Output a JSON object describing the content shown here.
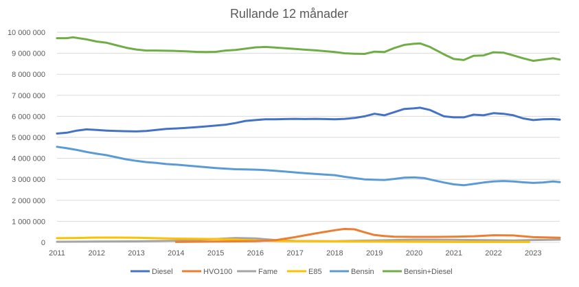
{
  "chart_data": {
    "type": "line",
    "title": "Rullande 12 månader",
    "xlabel": "",
    "ylabel": "",
    "xlim": [
      2011,
      2023.67
    ],
    "ylim": [
      0,
      10000000
    ],
    "grid": "horizontal",
    "legend_position": "bottom",
    "x_ticks": [
      {
        "value": 2011,
        "label": "2011"
      },
      {
        "value": 2012,
        "label": "2012"
      },
      {
        "value": 2013,
        "label": "2013"
      },
      {
        "value": 2014,
        "label": "2014"
      },
      {
        "value": 2015,
        "label": "2015"
      },
      {
        "value": 2016,
        "label": "2016"
      },
      {
        "value": 2017,
        "label": "2017"
      },
      {
        "value": 2018,
        "label": "2018"
      },
      {
        "value": 2019,
        "label": "2019"
      },
      {
        "value": 2020,
        "label": "2020"
      },
      {
        "value": 2021,
        "label": "2021"
      },
      {
        "value": 2022,
        "label": "2022"
      },
      {
        "value": 2023,
        "label": "2023"
      }
    ],
    "y_ticks": [
      {
        "value": 0,
        "label": "0"
      },
      {
        "value": 1000000,
        "label": "1 000 000"
      },
      {
        "value": 2000000,
        "label": "2 000 000"
      },
      {
        "value": 3000000,
        "label": "3 000 000"
      },
      {
        "value": 4000000,
        "label": "4 000 000"
      },
      {
        "value": 5000000,
        "label": "5 000 000"
      },
      {
        "value": 6000000,
        "label": "6 000 000"
      },
      {
        "value": 7000000,
        "label": "7 000 000"
      },
      {
        "value": 8000000,
        "label": "8 000 000"
      },
      {
        "value": 9000000,
        "label": "9 000 000"
      },
      {
        "value": 10000000,
        "label": "10 000 000"
      }
    ],
    "series": [
      {
        "name": "Diesel",
        "color": "#4472c4",
        "points": [
          [
            2011.0,
            5180000
          ],
          [
            2011.25,
            5220000
          ],
          [
            2011.5,
            5320000
          ],
          [
            2011.75,
            5380000
          ],
          [
            2012.0,
            5350000
          ],
          [
            2012.25,
            5320000
          ],
          [
            2012.5,
            5300000
          ],
          [
            2012.75,
            5290000
          ],
          [
            2013.0,
            5280000
          ],
          [
            2013.25,
            5300000
          ],
          [
            2013.5,
            5350000
          ],
          [
            2013.75,
            5400000
          ],
          [
            2014.0,
            5420000
          ],
          [
            2014.25,
            5450000
          ],
          [
            2014.5,
            5480000
          ],
          [
            2014.75,
            5520000
          ],
          [
            2015.0,
            5560000
          ],
          [
            2015.25,
            5600000
          ],
          [
            2015.5,
            5680000
          ],
          [
            2015.75,
            5780000
          ],
          [
            2016.0,
            5820000
          ],
          [
            2016.25,
            5860000
          ],
          [
            2016.5,
            5860000
          ],
          [
            2016.75,
            5870000
          ],
          [
            2017.0,
            5880000
          ],
          [
            2017.25,
            5870000
          ],
          [
            2017.5,
            5880000
          ],
          [
            2017.75,
            5870000
          ],
          [
            2018.0,
            5860000
          ],
          [
            2018.25,
            5880000
          ],
          [
            2018.5,
            5920000
          ],
          [
            2018.75,
            6000000
          ],
          [
            2019.0,
            6120000
          ],
          [
            2019.25,
            6050000
          ],
          [
            2019.5,
            6200000
          ],
          [
            2019.75,
            6350000
          ],
          [
            2020.0,
            6380000
          ],
          [
            2020.15,
            6410000
          ],
          [
            2020.4,
            6300000
          ],
          [
            2020.75,
            6000000
          ],
          [
            2021.0,
            5950000
          ],
          [
            2021.25,
            5950000
          ],
          [
            2021.5,
            6080000
          ],
          [
            2021.75,
            6050000
          ],
          [
            2022.0,
            6150000
          ],
          [
            2022.25,
            6120000
          ],
          [
            2022.5,
            6050000
          ],
          [
            2022.75,
            5900000
          ],
          [
            2023.0,
            5820000
          ],
          [
            2023.25,
            5860000
          ],
          [
            2023.5,
            5870000
          ],
          [
            2023.67,
            5840000
          ]
        ]
      },
      {
        "name": "HVO100",
        "color": "#ed7d31",
        "points": [
          [
            2014.0,
            20000
          ],
          [
            2015.0,
            40000
          ],
          [
            2016.0,
            60000
          ],
          [
            2016.5,
            100000
          ],
          [
            2017.0,
            250000
          ],
          [
            2017.5,
            420000
          ],
          [
            2018.0,
            580000
          ],
          [
            2018.25,
            640000
          ],
          [
            2018.5,
            620000
          ],
          [
            2018.75,
            480000
          ],
          [
            2019.0,
            350000
          ],
          [
            2019.25,
            300000
          ],
          [
            2019.5,
            270000
          ],
          [
            2020.0,
            260000
          ],
          [
            2020.5,
            260000
          ],
          [
            2021.0,
            270000
          ],
          [
            2021.5,
            290000
          ],
          [
            2022.0,
            340000
          ],
          [
            2022.5,
            330000
          ],
          [
            2023.0,
            250000
          ],
          [
            2023.67,
            220000
          ]
        ]
      },
      {
        "name": "Fame",
        "color": "#a5a5a5",
        "points": [
          [
            2011.0,
            30000
          ],
          [
            2012.0,
            40000
          ],
          [
            2013.0,
            50000
          ],
          [
            2014.0,
            80000
          ],
          [
            2014.5,
            120000
          ],
          [
            2015.0,
            160000
          ],
          [
            2015.5,
            210000
          ],
          [
            2016.0,
            190000
          ],
          [
            2016.5,
            110000
          ],
          [
            2017.0,
            70000
          ],
          [
            2018.0,
            60000
          ],
          [
            2019.0,
            90000
          ],
          [
            2020.0,
            130000
          ],
          [
            2021.0,
            120000
          ],
          [
            2022.0,
            100000
          ],
          [
            2022.5,
            90000
          ],
          [
            2023.0,
            110000
          ],
          [
            2023.67,
            130000
          ]
        ]
      },
      {
        "name": "E85",
        "color": "#ffc000",
        "points": [
          [
            2011.0,
            200000
          ],
          [
            2011.5,
            210000
          ],
          [
            2012.0,
            230000
          ],
          [
            2012.5,
            230000
          ],
          [
            2013.0,
            220000
          ],
          [
            2013.5,
            200000
          ],
          [
            2014.0,
            180000
          ],
          [
            2014.5,
            170000
          ],
          [
            2015.0,
            160000
          ],
          [
            2015.5,
            130000
          ],
          [
            2016.0,
            90000
          ],
          [
            2016.5,
            70000
          ],
          [
            2017.0,
            60000
          ],
          [
            2018.0,
            50000
          ],
          [
            2019.0,
            40000
          ],
          [
            2020.0,
            30000
          ],
          [
            2021.0,
            20000
          ],
          [
            2022.0,
            20000
          ],
          [
            2022.9,
            20000
          ]
        ]
      },
      {
        "name": "Bensin",
        "color": "#5b9bd5",
        "points": [
          [
            2011.0,
            4550000
          ],
          [
            2011.25,
            4480000
          ],
          [
            2011.5,
            4400000
          ],
          [
            2011.75,
            4300000
          ],
          [
            2012.0,
            4220000
          ],
          [
            2012.25,
            4150000
          ],
          [
            2012.5,
            4050000
          ],
          [
            2012.75,
            3950000
          ],
          [
            2013.0,
            3880000
          ],
          [
            2013.25,
            3820000
          ],
          [
            2013.5,
            3780000
          ],
          [
            2013.75,
            3730000
          ],
          [
            2014.0,
            3700000
          ],
          [
            2014.25,
            3660000
          ],
          [
            2014.5,
            3620000
          ],
          [
            2014.75,
            3580000
          ],
          [
            2015.0,
            3540000
          ],
          [
            2015.25,
            3510000
          ],
          [
            2015.5,
            3480000
          ],
          [
            2015.75,
            3470000
          ],
          [
            2016.0,
            3460000
          ],
          [
            2016.25,
            3440000
          ],
          [
            2016.5,
            3410000
          ],
          [
            2016.75,
            3370000
          ],
          [
            2017.0,
            3330000
          ],
          [
            2017.25,
            3290000
          ],
          [
            2017.5,
            3260000
          ],
          [
            2017.75,
            3230000
          ],
          [
            2018.0,
            3200000
          ],
          [
            2018.25,
            3120000
          ],
          [
            2018.5,
            3060000
          ],
          [
            2018.75,
            3000000
          ],
          [
            2019.0,
            2980000
          ],
          [
            2019.25,
            2970000
          ],
          [
            2019.5,
            3020000
          ],
          [
            2019.75,
            3080000
          ],
          [
            2020.0,
            3090000
          ],
          [
            2020.25,
            3060000
          ],
          [
            2020.5,
            2950000
          ],
          [
            2020.75,
            2850000
          ],
          [
            2021.0,
            2760000
          ],
          [
            2021.25,
            2720000
          ],
          [
            2021.5,
            2780000
          ],
          [
            2021.75,
            2850000
          ],
          [
            2022.0,
            2900000
          ],
          [
            2022.25,
            2920000
          ],
          [
            2022.5,
            2900000
          ],
          [
            2022.75,
            2860000
          ],
          [
            2023.0,
            2830000
          ],
          [
            2023.25,
            2850000
          ],
          [
            2023.5,
            2900000
          ],
          [
            2023.67,
            2870000
          ]
        ]
      },
      {
        "name": "Bensin+Diesel",
        "color": "#70ad47",
        "points": [
          [
            2011.0,
            9720000
          ],
          [
            2011.25,
            9720000
          ],
          [
            2011.4,
            9760000
          ],
          [
            2011.75,
            9660000
          ],
          [
            2012.0,
            9560000
          ],
          [
            2012.25,
            9500000
          ],
          [
            2012.5,
            9380000
          ],
          [
            2012.75,
            9260000
          ],
          [
            2013.0,
            9180000
          ],
          [
            2013.25,
            9130000
          ],
          [
            2013.5,
            9130000
          ],
          [
            2013.75,
            9120000
          ],
          [
            2014.0,
            9110000
          ],
          [
            2014.25,
            9090000
          ],
          [
            2014.5,
            9070000
          ],
          [
            2014.75,
            9060000
          ],
          [
            2015.0,
            9070000
          ],
          [
            2015.25,
            9130000
          ],
          [
            2015.5,
            9160000
          ],
          [
            2015.75,
            9220000
          ],
          [
            2016.0,
            9280000
          ],
          [
            2016.25,
            9300000
          ],
          [
            2016.5,
            9270000
          ],
          [
            2016.75,
            9240000
          ],
          [
            2017.0,
            9210000
          ],
          [
            2017.25,
            9170000
          ],
          [
            2017.5,
            9140000
          ],
          [
            2017.75,
            9100000
          ],
          [
            2018.0,
            9060000
          ],
          [
            2018.25,
            9000000
          ],
          [
            2018.5,
            8980000
          ],
          [
            2018.75,
            8970000
          ],
          [
            2019.0,
            9080000
          ],
          [
            2019.25,
            9060000
          ],
          [
            2019.5,
            9250000
          ],
          [
            2019.75,
            9400000
          ],
          [
            2020.0,
            9450000
          ],
          [
            2020.15,
            9470000
          ],
          [
            2020.4,
            9300000
          ],
          [
            2020.75,
            8950000
          ],
          [
            2021.0,
            8730000
          ],
          [
            2021.25,
            8680000
          ],
          [
            2021.5,
            8880000
          ],
          [
            2021.75,
            8900000
          ],
          [
            2022.0,
            9050000
          ],
          [
            2022.25,
            9030000
          ],
          [
            2022.5,
            8900000
          ],
          [
            2022.75,
            8760000
          ],
          [
            2023.0,
            8640000
          ],
          [
            2023.25,
            8700000
          ],
          [
            2023.5,
            8760000
          ],
          [
            2023.67,
            8700000
          ]
        ]
      }
    ]
  }
}
